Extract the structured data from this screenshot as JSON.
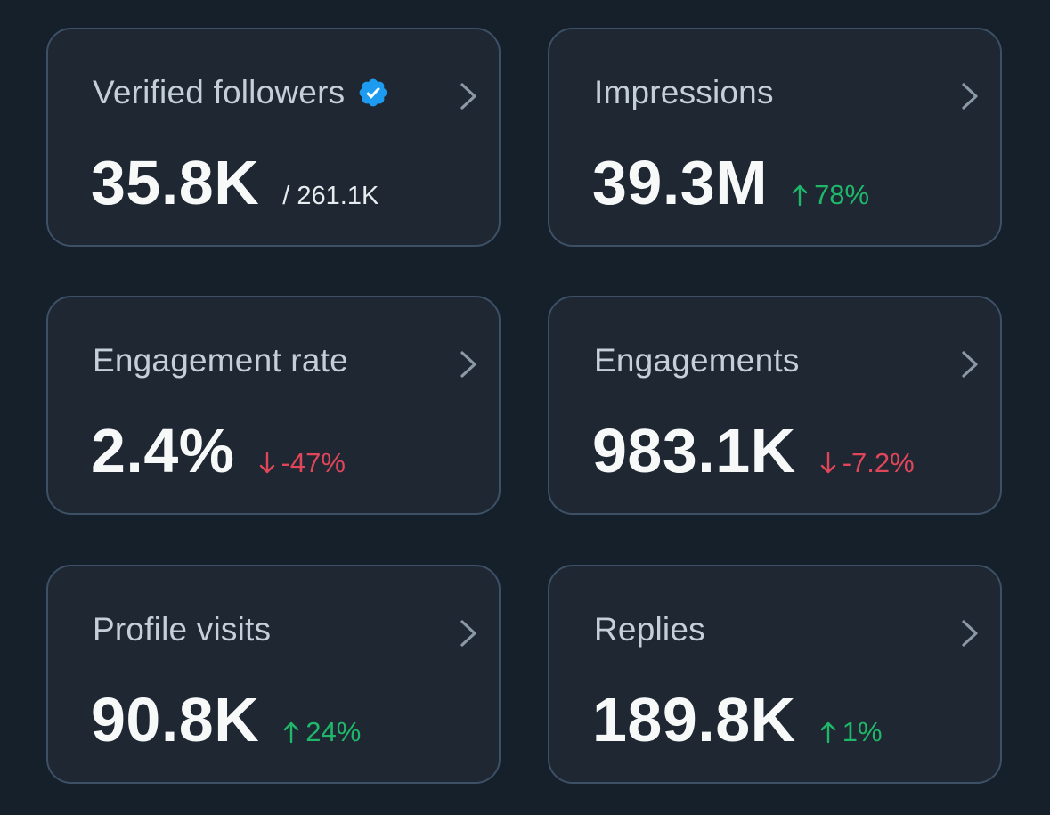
{
  "cards": [
    {
      "title": "Verified followers",
      "value": "35.8K",
      "secondary": "/ 261.1K",
      "badge_icon": "verified-badge-icon",
      "badge_color": "#1d9bf0"
    },
    {
      "title": "Impressions",
      "value": "39.3M",
      "change": "78%",
      "direction": "up"
    },
    {
      "title": "Engagement rate",
      "value": "2.4%",
      "change": "-47%",
      "direction": "down"
    },
    {
      "title": "Engagements",
      "value": "983.1K",
      "change": "-7.2%",
      "direction": "down"
    },
    {
      "title": "Profile visits",
      "value": "90.8K",
      "change": "24%",
      "direction": "up"
    },
    {
      "title": "Replies",
      "value": "189.8K",
      "change": "1%",
      "direction": "up"
    }
  ],
  "colors": {
    "background": "#15202b",
    "card": "#1e2732",
    "border": "#3d5066",
    "up": "#1fb86b",
    "down": "#e0455a"
  },
  "icons": {
    "chevron": "chevron-right-icon",
    "up": "arrow-up-icon",
    "down": "arrow-down-icon"
  }
}
